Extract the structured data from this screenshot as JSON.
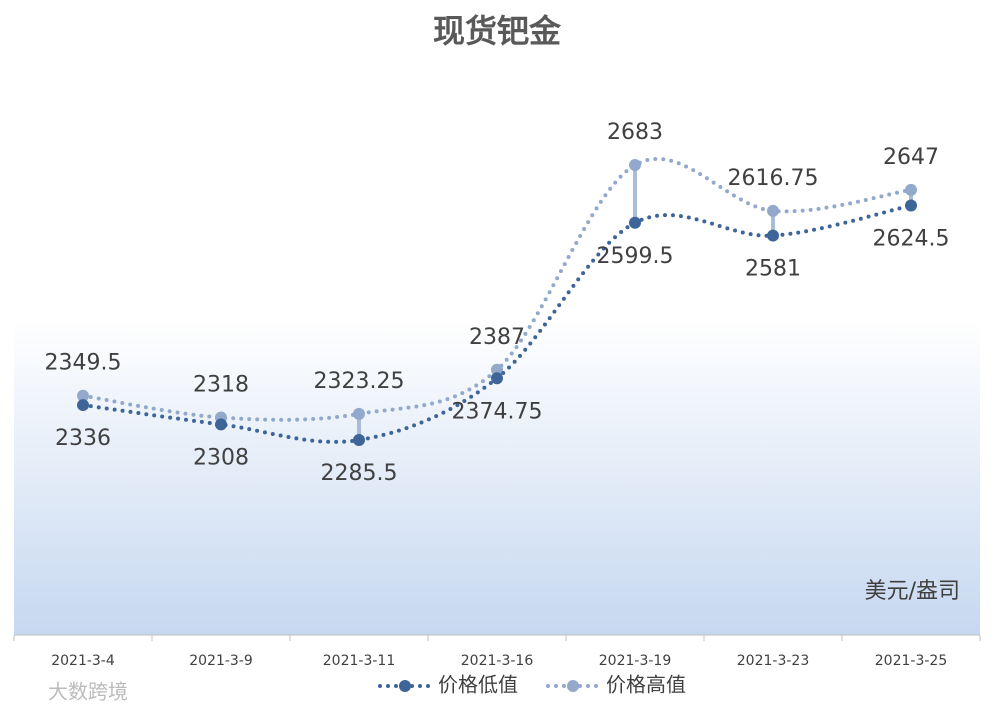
{
  "chart_data": {
    "type": "line",
    "title": "现货钯金",
    "categories": [
      "2021-3-4",
      "2021-3-9",
      "2021-3-11",
      "2021-3-16",
      "2021-3-19",
      "2021-3-23",
      "2021-3-25"
    ],
    "series": [
      {
        "name": "价格低值",
        "color": "#3d6598",
        "values": [
          2336,
          2308,
          2285.5,
          2374.75,
          2599.5,
          2581,
          2624.5
        ]
      },
      {
        "name": "价格高值",
        "color": "#93a9cc",
        "values": [
          2349.5,
          2318,
          2323.25,
          2387,
          2683,
          2616.75,
          2647
        ]
      }
    ],
    "unit_label": "美元/盎司",
    "watermark": "大数跨境"
  }
}
